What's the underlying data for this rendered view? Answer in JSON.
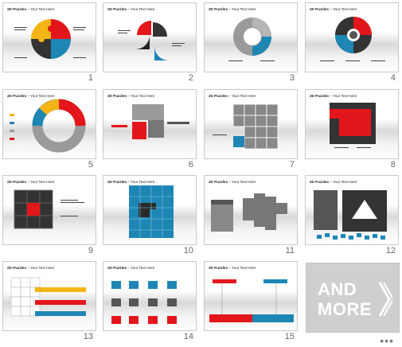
{
  "slides": [
    {
      "number": "1",
      "title_bold": "2D Puzzles",
      "title_rest": " – Your Text Here"
    },
    {
      "number": "2",
      "title_bold": "2D Puzzles",
      "title_rest": " – Your Text Here"
    },
    {
      "number": "3",
      "title_bold": "2D Puzzles",
      "title_rest": " – Your Text Here"
    },
    {
      "number": "4",
      "title_bold": "2D Puzzles",
      "title_rest": " – Your Text Here"
    },
    {
      "number": "5",
      "title_bold": "2D Puzzles",
      "title_rest": " – Your Text Here"
    },
    {
      "number": "6",
      "title_bold": "2D Puzzles",
      "title_rest": " – Your Text Here"
    },
    {
      "number": "7",
      "title_bold": "2D Puzzles",
      "title_rest": " – Your Text Here"
    },
    {
      "number": "8",
      "title_bold": "2D Puzzles",
      "title_rest": " – Your Text Here"
    },
    {
      "number": "9",
      "title_bold": "2D Puzzles",
      "title_rest": " – Your Text Here"
    },
    {
      "number": "10",
      "title_bold": "2D Puzzles",
      "title_rest": " – Your Text Here"
    },
    {
      "number": "11",
      "title_bold": "2D Puzzles",
      "title_rest": " – Your Text Here"
    },
    {
      "number": "12",
      "title_bold": "2D Puzzles",
      "title_rest": " – Your Text Here"
    },
    {
      "number": "13",
      "title_bold": "2D Puzzles",
      "title_rest": " – Your Text Here"
    },
    {
      "number": "14",
      "title_bold": "2D Puzzles",
      "title_rest": " – Your Text Here"
    },
    {
      "number": "15",
      "title_bold": "2D Puzzles",
      "title_rest": " – Your Text Here"
    }
  ],
  "example_text": "Example Text",
  "more_tile": {
    "line1": "AND",
    "line2": "MORE",
    "ellipsis": "•••"
  },
  "colors": {
    "red": "#e3161b",
    "blue": "#1e86b5",
    "yellow": "#f3b516",
    "gray": "#8a8a8a",
    "dark": "#333333"
  }
}
